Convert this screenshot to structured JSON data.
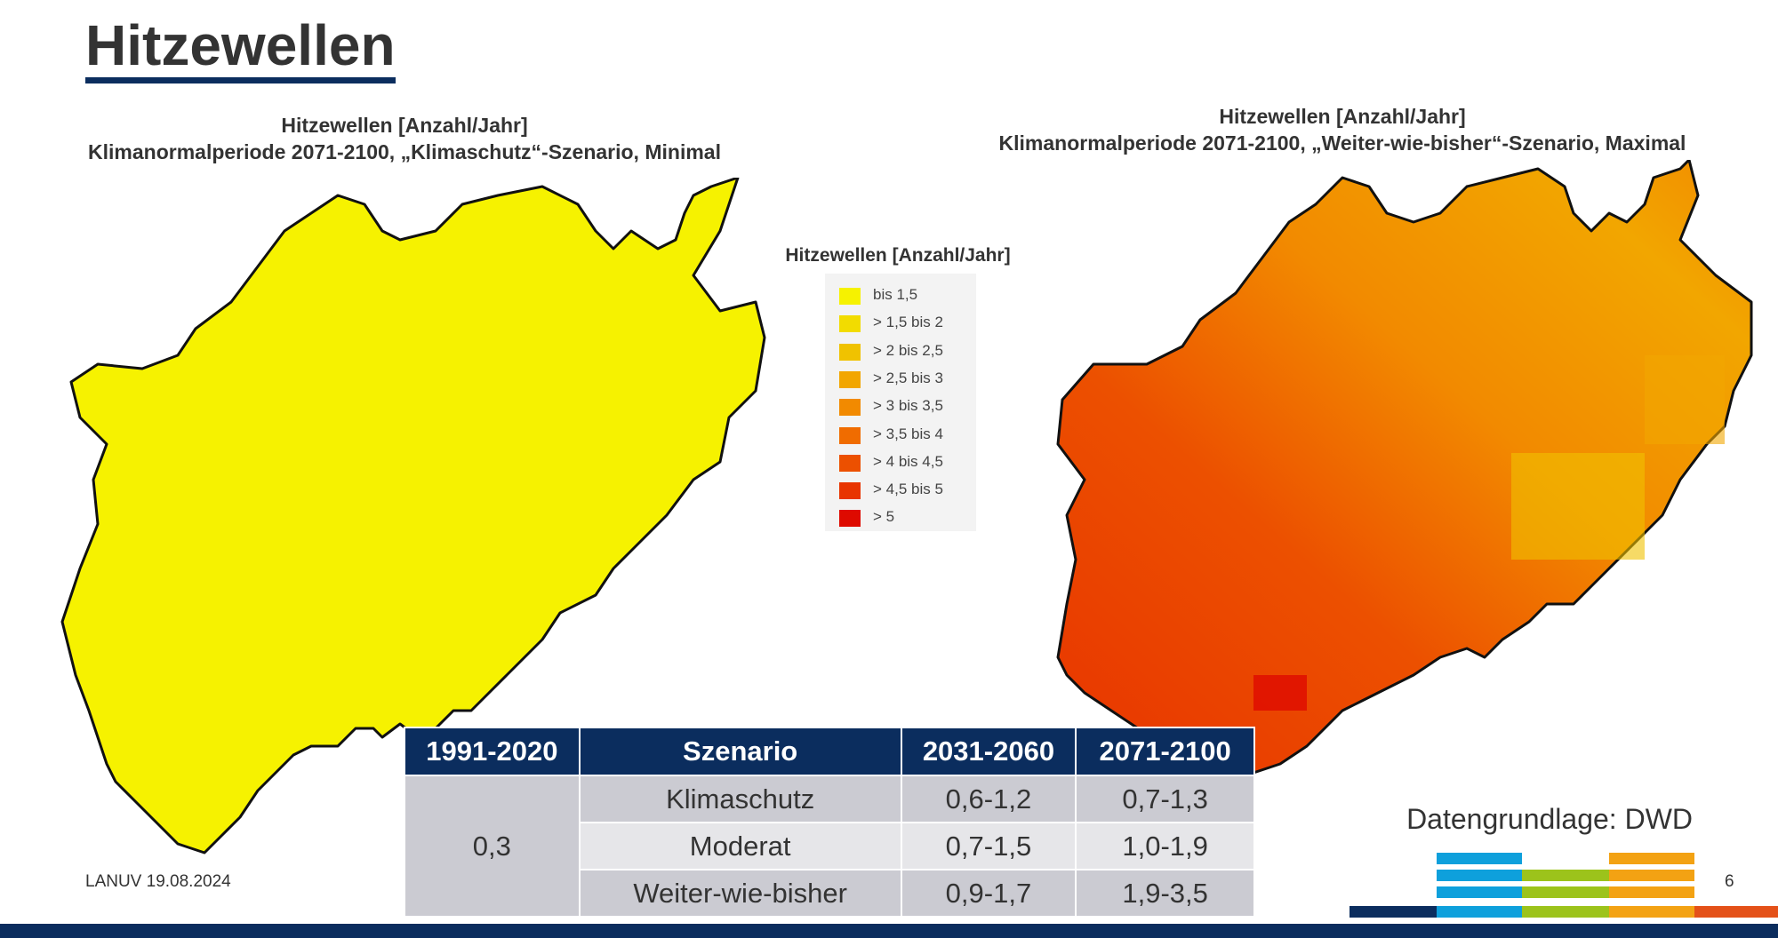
{
  "slide": {
    "title": "Hitzewellen",
    "left_map_title_line1": "Hitzewellen [Anzahl/Jahr]",
    "left_map_title_line2": "Klimanormalperiode 2071-2100, „Klimaschutz“-Szenario, Minimal",
    "right_map_title_line1": "Hitzewellen [Anzahl/Jahr]",
    "right_map_title_line2": "Klimanormalperiode 2071-2100, „Weiter-wie-bisher“-Szenario, Maximal",
    "source": "Datengrundlage: DWD",
    "footer_left": "LANUV 19.08.2024",
    "page_number": "6"
  },
  "legend": {
    "title": "Hitzewellen [Anzahl/Jahr]",
    "items": [
      {
        "label": "bis 1,5",
        "color": "#f6f200"
      },
      {
        "label": "> 1,5 bis 2",
        "color": "#f2dc00"
      },
      {
        "label": "> 2 bis 2,5",
        "color": "#f0c200"
      },
      {
        "label": "> 2,5 bis 3",
        "color": "#f2a600"
      },
      {
        "label": "> 3 bis 3,5",
        "color": "#f28a00"
      },
      {
        "label": "> 3,5 bis 4",
        "color": "#f06c00"
      },
      {
        "label": "> 4 bis 4,5",
        "color": "#ec5000"
      },
      {
        "label": "> 4,5 bis 5",
        "color": "#e83400"
      },
      {
        "label": "> 5",
        "color": "#de0a00"
      }
    ]
  },
  "table": {
    "headers": [
      "1991-2020",
      "Szenario",
      "2031-2060",
      "2071-2100"
    ],
    "baseline": "0,3",
    "rows": [
      {
        "szenario": "Klimaschutz",
        "p1": "0,6-1,2",
        "p2": "0,7-1,3"
      },
      {
        "szenario": "Moderat",
        "p1": "0,7-1,5",
        "p2": "1,0-1,9"
      },
      {
        "szenario": "Weiter-wie-bisher",
        "p1": "0,9-1,7",
        "p2": "1,9-3,5"
      }
    ]
  },
  "colors": {
    "navy": "#0b2d5e",
    "left_map_fill": "#f6f200",
    "right_map_base": "#f07a00",
    "accent_blue": "#0ea0dc",
    "accent_green": "#9cc31b",
    "accent_orange": "#f3a213",
    "accent_red": "#e45119"
  }
}
